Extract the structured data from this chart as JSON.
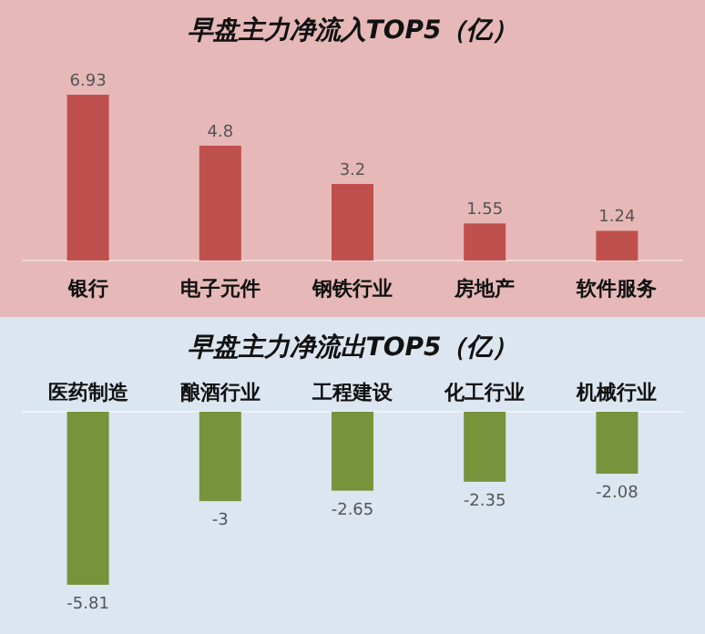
{
  "chart_data": [
    {
      "type": "bar",
      "title": "早盘主力净流入TOP5（亿）",
      "categories": [
        "银行",
        "电子元件",
        "钢铁行业",
        "房地产",
        "软件服务"
      ],
      "values": [
        6.93,
        4.8,
        3.2,
        1.55,
        1.24
      ],
      "color": "#c0504d",
      "data_labels": true
    },
    {
      "type": "bar",
      "title": "早盘主力净流出TOP5（亿）",
      "categories": [
        "医药制造",
        "酿酒行业",
        "工程建设",
        "化工行业",
        "机械行业"
      ],
      "values": [
        -5.81,
        -3,
        -2.65,
        -2.35,
        -2.08
      ],
      "color": "#77933c",
      "data_labels": true
    }
  ]
}
